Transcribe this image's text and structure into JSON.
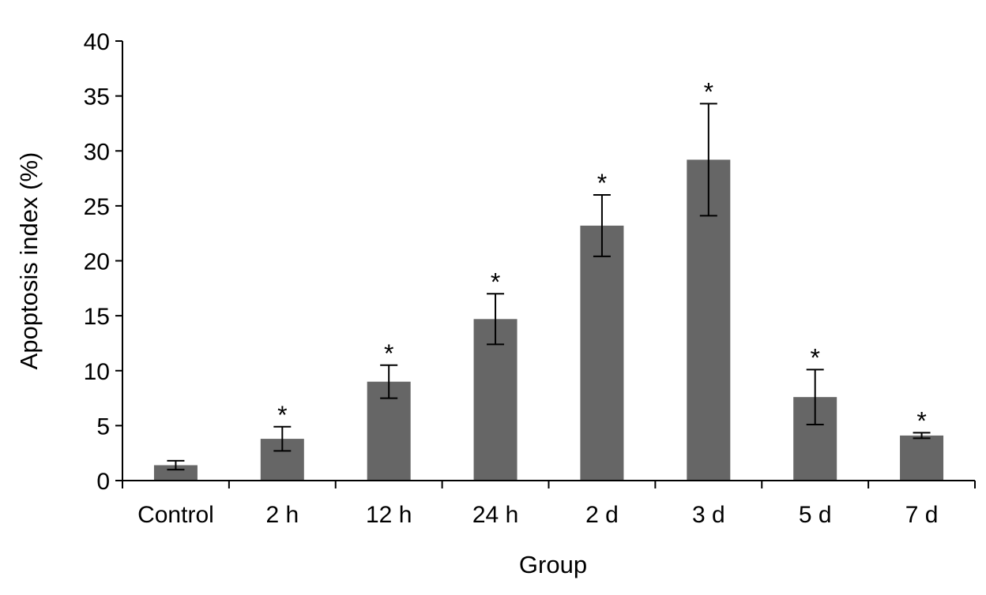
{
  "chart_data": {
    "type": "bar",
    "title": "",
    "xlabel": "Group",
    "ylabel": "Apoptosis index (%)",
    "ylim": [
      0,
      40
    ],
    "yticks": [
      0,
      5,
      10,
      15,
      20,
      25,
      30,
      35,
      40
    ],
    "categories": [
      "Control",
      "2 h",
      "12 h",
      "24 h",
      "2 d",
      "3 d",
      "5 d",
      "7 d"
    ],
    "values": [
      1.4,
      3.8,
      9.0,
      14.7,
      23.2,
      29.2,
      7.6,
      4.1
    ],
    "error": [
      0.4,
      1.1,
      1.5,
      2.3,
      2.8,
      5.1,
      2.5,
      0.25
    ],
    "significance": [
      "",
      "*",
      "*",
      "*",
      "*",
      "*",
      "*",
      "*"
    ],
    "bar_color": "#666666",
    "grid": false,
    "legend": "none"
  }
}
